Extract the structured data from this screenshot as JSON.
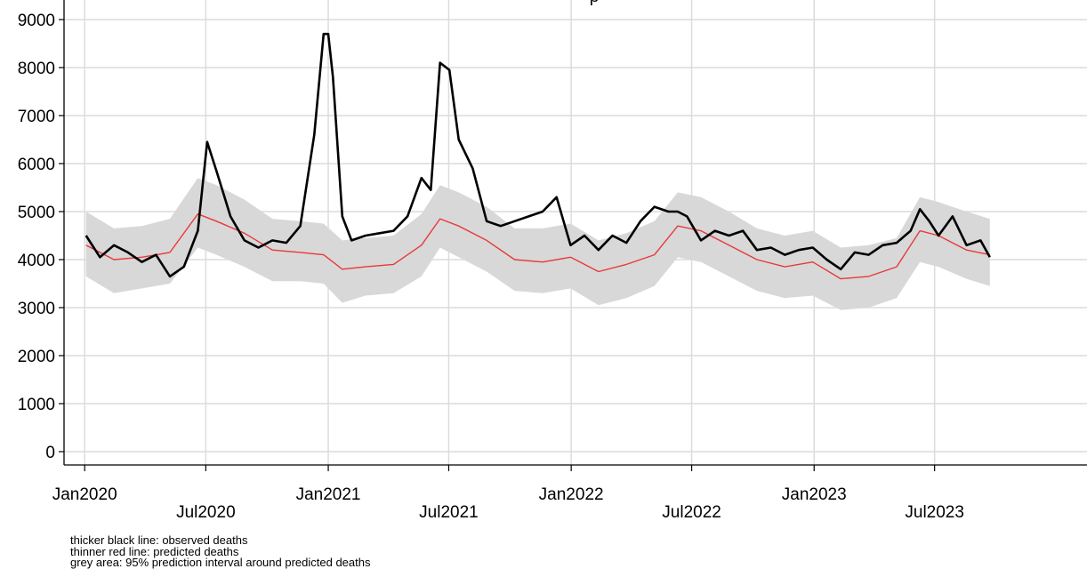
{
  "chart_data": {
    "type": "line",
    "title_fragment": "p",
    "xlabel": "",
    "ylabel": "",
    "ylim": [
      0,
      9000
    ],
    "yticks": [
      "0",
      "1000",
      "2000",
      "3000",
      "4000",
      "5000",
      "6000",
      "7000",
      "8000",
      "9000"
    ],
    "xticks": [
      {
        "date": "2020-01-01",
        "label": "Jan2020",
        "row": 1
      },
      {
        "date": "2020-07-01",
        "label": "Jul2020",
        "row": 2
      },
      {
        "date": "2021-01-01",
        "label": "Jan2021",
        "row": 1
      },
      {
        "date": "2021-07-01",
        "label": "Jul2021",
        "row": 2
      },
      {
        "date": "2022-01-01",
        "label": "Jan2022",
        "row": 1
      },
      {
        "date": "2022-07-01",
        "label": "Jul2022",
        "row": 2
      },
      {
        "date": "2023-01-01",
        "label": "Jan2023",
        "row": 1
      },
      {
        "date": "2023-07-01",
        "label": "Jul2023",
        "row": 2
      }
    ],
    "xlim": [
      "2019-12-01",
      "2024-02-15"
    ],
    "grid": true,
    "series": [
      {
        "key": "observed",
        "color": "#000000",
        "x": [
          "2020-01-03",
          "2020-01-24",
          "2020-02-14",
          "2020-03-06",
          "2020-03-27",
          "2020-04-17",
          "2020-05-08",
          "2020-05-29",
          "2020-06-19",
          "2020-07-03",
          "2020-07-17",
          "2020-08-07",
          "2020-08-28",
          "2020-09-18",
          "2020-10-09",
          "2020-10-30",
          "2020-11-20",
          "2020-12-11",
          "2020-12-25",
          "2021-01-01",
          "2021-01-08",
          "2021-01-22",
          "2021-02-05",
          "2021-02-26",
          "2021-03-19",
          "2021-04-09",
          "2021-04-30",
          "2021-05-21",
          "2021-06-04",
          "2021-06-18",
          "2021-07-02",
          "2021-07-16",
          "2021-08-06",
          "2021-08-27",
          "2021-09-17",
          "2021-10-08",
          "2021-10-29",
          "2021-11-19",
          "2021-12-10",
          "2021-12-31",
          "2022-01-21",
          "2022-02-11",
          "2022-03-04",
          "2022-03-25",
          "2022-04-15",
          "2022-05-06",
          "2022-05-27",
          "2022-06-10",
          "2022-06-24",
          "2022-07-15",
          "2022-08-05",
          "2022-08-26",
          "2022-09-16",
          "2022-10-07",
          "2022-10-28",
          "2022-11-18",
          "2022-12-09",
          "2022-12-30",
          "2023-01-20",
          "2023-02-10",
          "2023-03-03",
          "2023-03-24",
          "2023-04-14",
          "2023-05-05",
          "2023-05-26",
          "2023-06-09",
          "2023-06-23",
          "2023-07-07",
          "2023-07-28",
          "2023-08-18",
          "2023-09-08",
          "2023-09-22"
        ],
        "values": [
          4500,
          4050,
          4300,
          4150,
          3950,
          4100,
          3650,
          3850,
          4600,
          6450,
          5850,
          4900,
          4400,
          4250,
          4400,
          4350,
          4700,
          6600,
          8700,
          8700,
          7800,
          4900,
          4400,
          4500,
          4550,
          4600,
          4900,
          5700,
          5450,
          8100,
          7950,
          6500,
          5900,
          4800,
          4700,
          4800,
          4900,
          5000,
          5300,
          4300,
          4500,
          4200,
          4500,
          4350,
          4800,
          5100,
          5000,
          5000,
          4900,
          4400,
          4600,
          4500,
          4600,
          4200,
          4250,
          4100,
          4200,
          4250,
          4000,
          3800,
          4150,
          4100,
          4300,
          4350,
          4600,
          5050,
          4800,
          4500,
          4900,
          4300,
          4400,
          4050
        ]
      },
      {
        "key": "predicted",
        "color": "#e8393a",
        "x": [
          "2020-01-03",
          "2020-02-14",
          "2020-03-27",
          "2020-05-08",
          "2020-06-19",
          "2020-07-17",
          "2020-08-28",
          "2020-10-09",
          "2020-11-20",
          "2020-12-25",
          "2021-01-22",
          "2021-02-26",
          "2021-04-09",
          "2021-05-21",
          "2021-06-18",
          "2021-07-16",
          "2021-08-27",
          "2021-10-08",
          "2021-11-19",
          "2021-12-31",
          "2022-02-11",
          "2022-03-25",
          "2022-05-06",
          "2022-06-10",
          "2022-07-15",
          "2022-08-26",
          "2022-10-07",
          "2022-11-18",
          "2022-12-30",
          "2023-02-10",
          "2023-03-24",
          "2023-05-05",
          "2023-06-09",
          "2023-07-07",
          "2023-08-18",
          "2023-09-22"
        ],
        "values": [
          4300,
          4000,
          4050,
          4150,
          4950,
          4800,
          4550,
          4200,
          4150,
          4100,
          3800,
          3850,
          3900,
          4300,
          4850,
          4700,
          4400,
          4000,
          3950,
          4050,
          3750,
          3900,
          4100,
          4700,
          4600,
          4300,
          4000,
          3850,
          3950,
          3600,
          3650,
          3850,
          4600,
          4500,
          4200,
          4100
        ]
      }
    ],
    "band": {
      "key": "interval",
      "color": "#d8d8d8",
      "x": [
        "2020-01-03",
        "2020-02-14",
        "2020-03-27",
        "2020-05-08",
        "2020-06-19",
        "2020-07-17",
        "2020-08-28",
        "2020-10-09",
        "2020-11-20",
        "2020-12-25",
        "2021-01-22",
        "2021-02-26",
        "2021-04-09",
        "2021-05-21",
        "2021-06-18",
        "2021-07-16",
        "2021-08-27",
        "2021-10-08",
        "2021-11-19",
        "2021-12-31",
        "2022-02-11",
        "2022-03-25",
        "2022-05-06",
        "2022-06-10",
        "2022-07-15",
        "2022-08-26",
        "2022-10-07",
        "2022-11-18",
        "2022-12-30",
        "2023-02-10",
        "2023-03-24",
        "2023-05-05",
        "2023-06-09",
        "2023-07-07",
        "2023-08-18",
        "2023-09-22"
      ],
      "upper": [
        5000,
        4650,
        4700,
        4850,
        5700,
        5550,
        5250,
        4850,
        4800,
        4750,
        4400,
        4450,
        4500,
        4950,
        5550,
        5400,
        5100,
        4650,
        4650,
        4750,
        4400,
        4550,
        4800,
        5400,
        5300,
        5000,
        4650,
        4500,
        4600,
        4250,
        4300,
        4450,
        5300,
        5200,
        5000,
        4850
      ],
      "lower": [
        3650,
        3300,
        3400,
        3500,
        4250,
        4100,
        3850,
        3550,
        3550,
        3500,
        3100,
        3250,
        3300,
        3650,
        4250,
        4050,
        3750,
        3350,
        3300,
        3400,
        3050,
        3200,
        3450,
        4050,
        3950,
        3650,
        3350,
        3200,
        3250,
        2950,
        3000,
        3200,
        3950,
        3850,
        3600,
        3450
      ]
    }
  },
  "notes": [
    "thicker black line: observed deaths",
    "thinner red line: predicted deaths",
    "grey area: 95% prediction interval around predicted deaths"
  ]
}
